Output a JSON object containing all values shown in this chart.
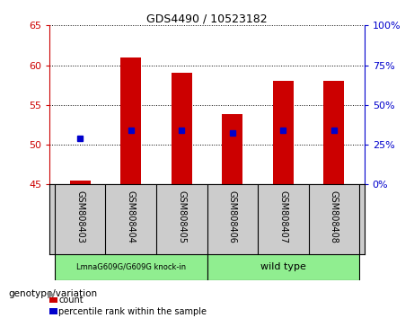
{
  "title": "GDS4490 / 10523182",
  "samples": [
    "GSM808403",
    "GSM808404",
    "GSM808405",
    "GSM808406",
    "GSM808407",
    "GSM808408"
  ],
  "bar_tops": [
    45.5,
    61.0,
    59.0,
    53.8,
    58.0,
    58.0
  ],
  "bar_bottom": 45.0,
  "blue_dot_values": [
    50.8,
    51.8,
    51.8,
    51.5,
    51.8,
    51.8
  ],
  "ylim": [
    45.0,
    65.0
  ],
  "yticks_left": [
    45,
    50,
    55,
    60,
    65
  ],
  "yticks_right": [
    0,
    25,
    50,
    75,
    100
  ],
  "ylim_right": [
    0,
    100
  ],
  "bar_color": "#cc0000",
  "blue_color": "#0000cc",
  "ax_color_left": "#cc0000",
  "ax_color_right": "#0000cc",
  "group1_label": "LmnaG609G/G609G knock-in",
  "group2_label": "wild type",
  "group1_color": "#90ee90",
  "group2_color": "#90ee90",
  "xlabel": "genotype/variation",
  "legend_count": "count",
  "legend_percentile": "percentile rank within the sample",
  "bar_width": 0.4,
  "tick_label_area_color": "#cccccc",
  "group_border_color": "#000000",
  "title_fontsize": 9
}
